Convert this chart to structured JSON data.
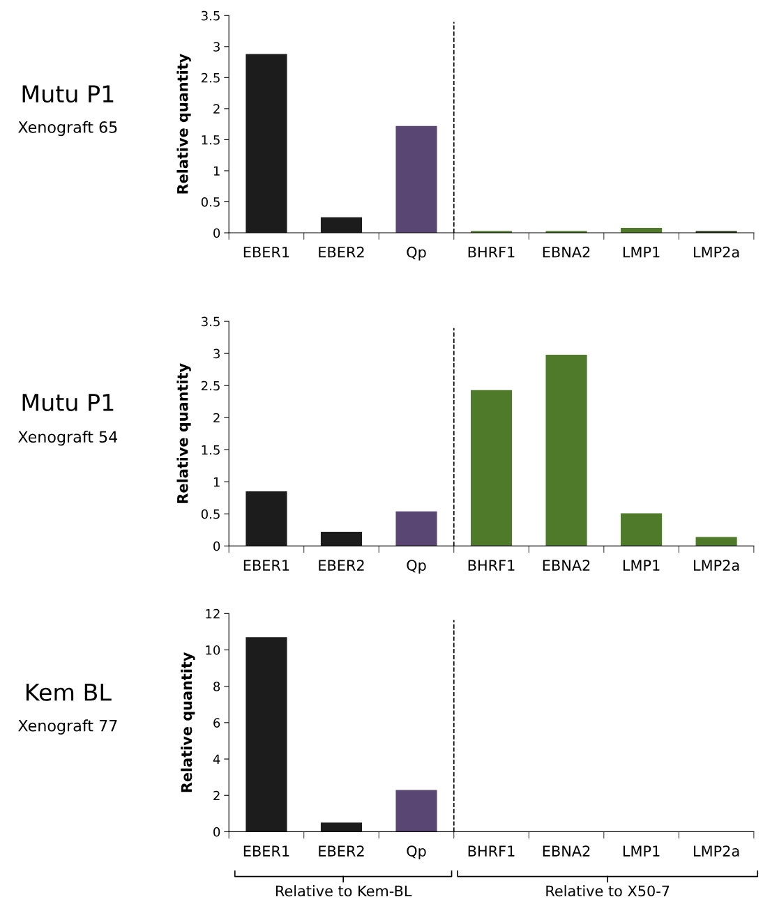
{
  "chart_data": [
    {
      "type": "bar",
      "title": "Mutu P1",
      "subtitle": "Xenograft 65",
      "ylabel": "Relative quantity",
      "categories": [
        "EBER1",
        "EBER2",
        "Qp",
        "BHRF1",
        "EBNA2",
        "LMP1",
        "LMP2a"
      ],
      "values": [
        2.88,
        0.25,
        1.72,
        0.03,
        0.03,
        0.08,
        0.03
      ],
      "colors": [
        "#1c1c1c",
        "#1c1c1c",
        "#5a4672",
        "#4e7a2a",
        "#4e7a2a",
        "#4e7a2a",
        "#2a3a1a"
      ],
      "ylim": [
        0,
        3.5
      ],
      "yticks": [
        0,
        0.5,
        1,
        1.5,
        2,
        2.5,
        3,
        3.5
      ],
      "grid": false
    },
    {
      "type": "bar",
      "title": "Mutu P1",
      "subtitle": "Xenograft 54",
      "ylabel": "Relative quantity",
      "categories": [
        "EBER1",
        "EBER2",
        "Qp",
        "BHRF1",
        "EBNA2",
        "LMP1",
        "LMP2a"
      ],
      "values": [
        0.85,
        0.22,
        0.54,
        2.43,
        2.98,
        0.51,
        0.14
      ],
      "colors": [
        "#1c1c1c",
        "#1c1c1c",
        "#5a4672",
        "#4e7a2a",
        "#4e7a2a",
        "#4e7a2a",
        "#4e7a2a"
      ],
      "ylim": [
        0,
        3.5
      ],
      "yticks": [
        0,
        0.5,
        1,
        1.5,
        2,
        2.5,
        3,
        3.5
      ],
      "grid": false
    },
    {
      "type": "bar",
      "title": "Kem BL",
      "subtitle": "Xenograft 77",
      "ylabel": "Relative quantity",
      "categories": [
        "EBER1",
        "EBER2",
        "Qp",
        "BHRF1",
        "EBNA2",
        "LMP1",
        "LMP2a"
      ],
      "values": [
        10.7,
        0.5,
        2.3,
        0,
        0,
        0,
        0
      ],
      "colors": [
        "#1c1c1c",
        "#1c1c1c",
        "#5a4672",
        "#4e7a2a",
        "#4e7a2a",
        "#4e7a2a",
        "#4e7a2a"
      ],
      "ylim": [
        0,
        12
      ],
      "yticks": [
        0,
        2,
        4,
        6,
        8,
        10,
        12
      ],
      "grid": false,
      "annotations": [
        "Relative to Kem-BL",
        "Relative to X50-7"
      ]
    }
  ]
}
